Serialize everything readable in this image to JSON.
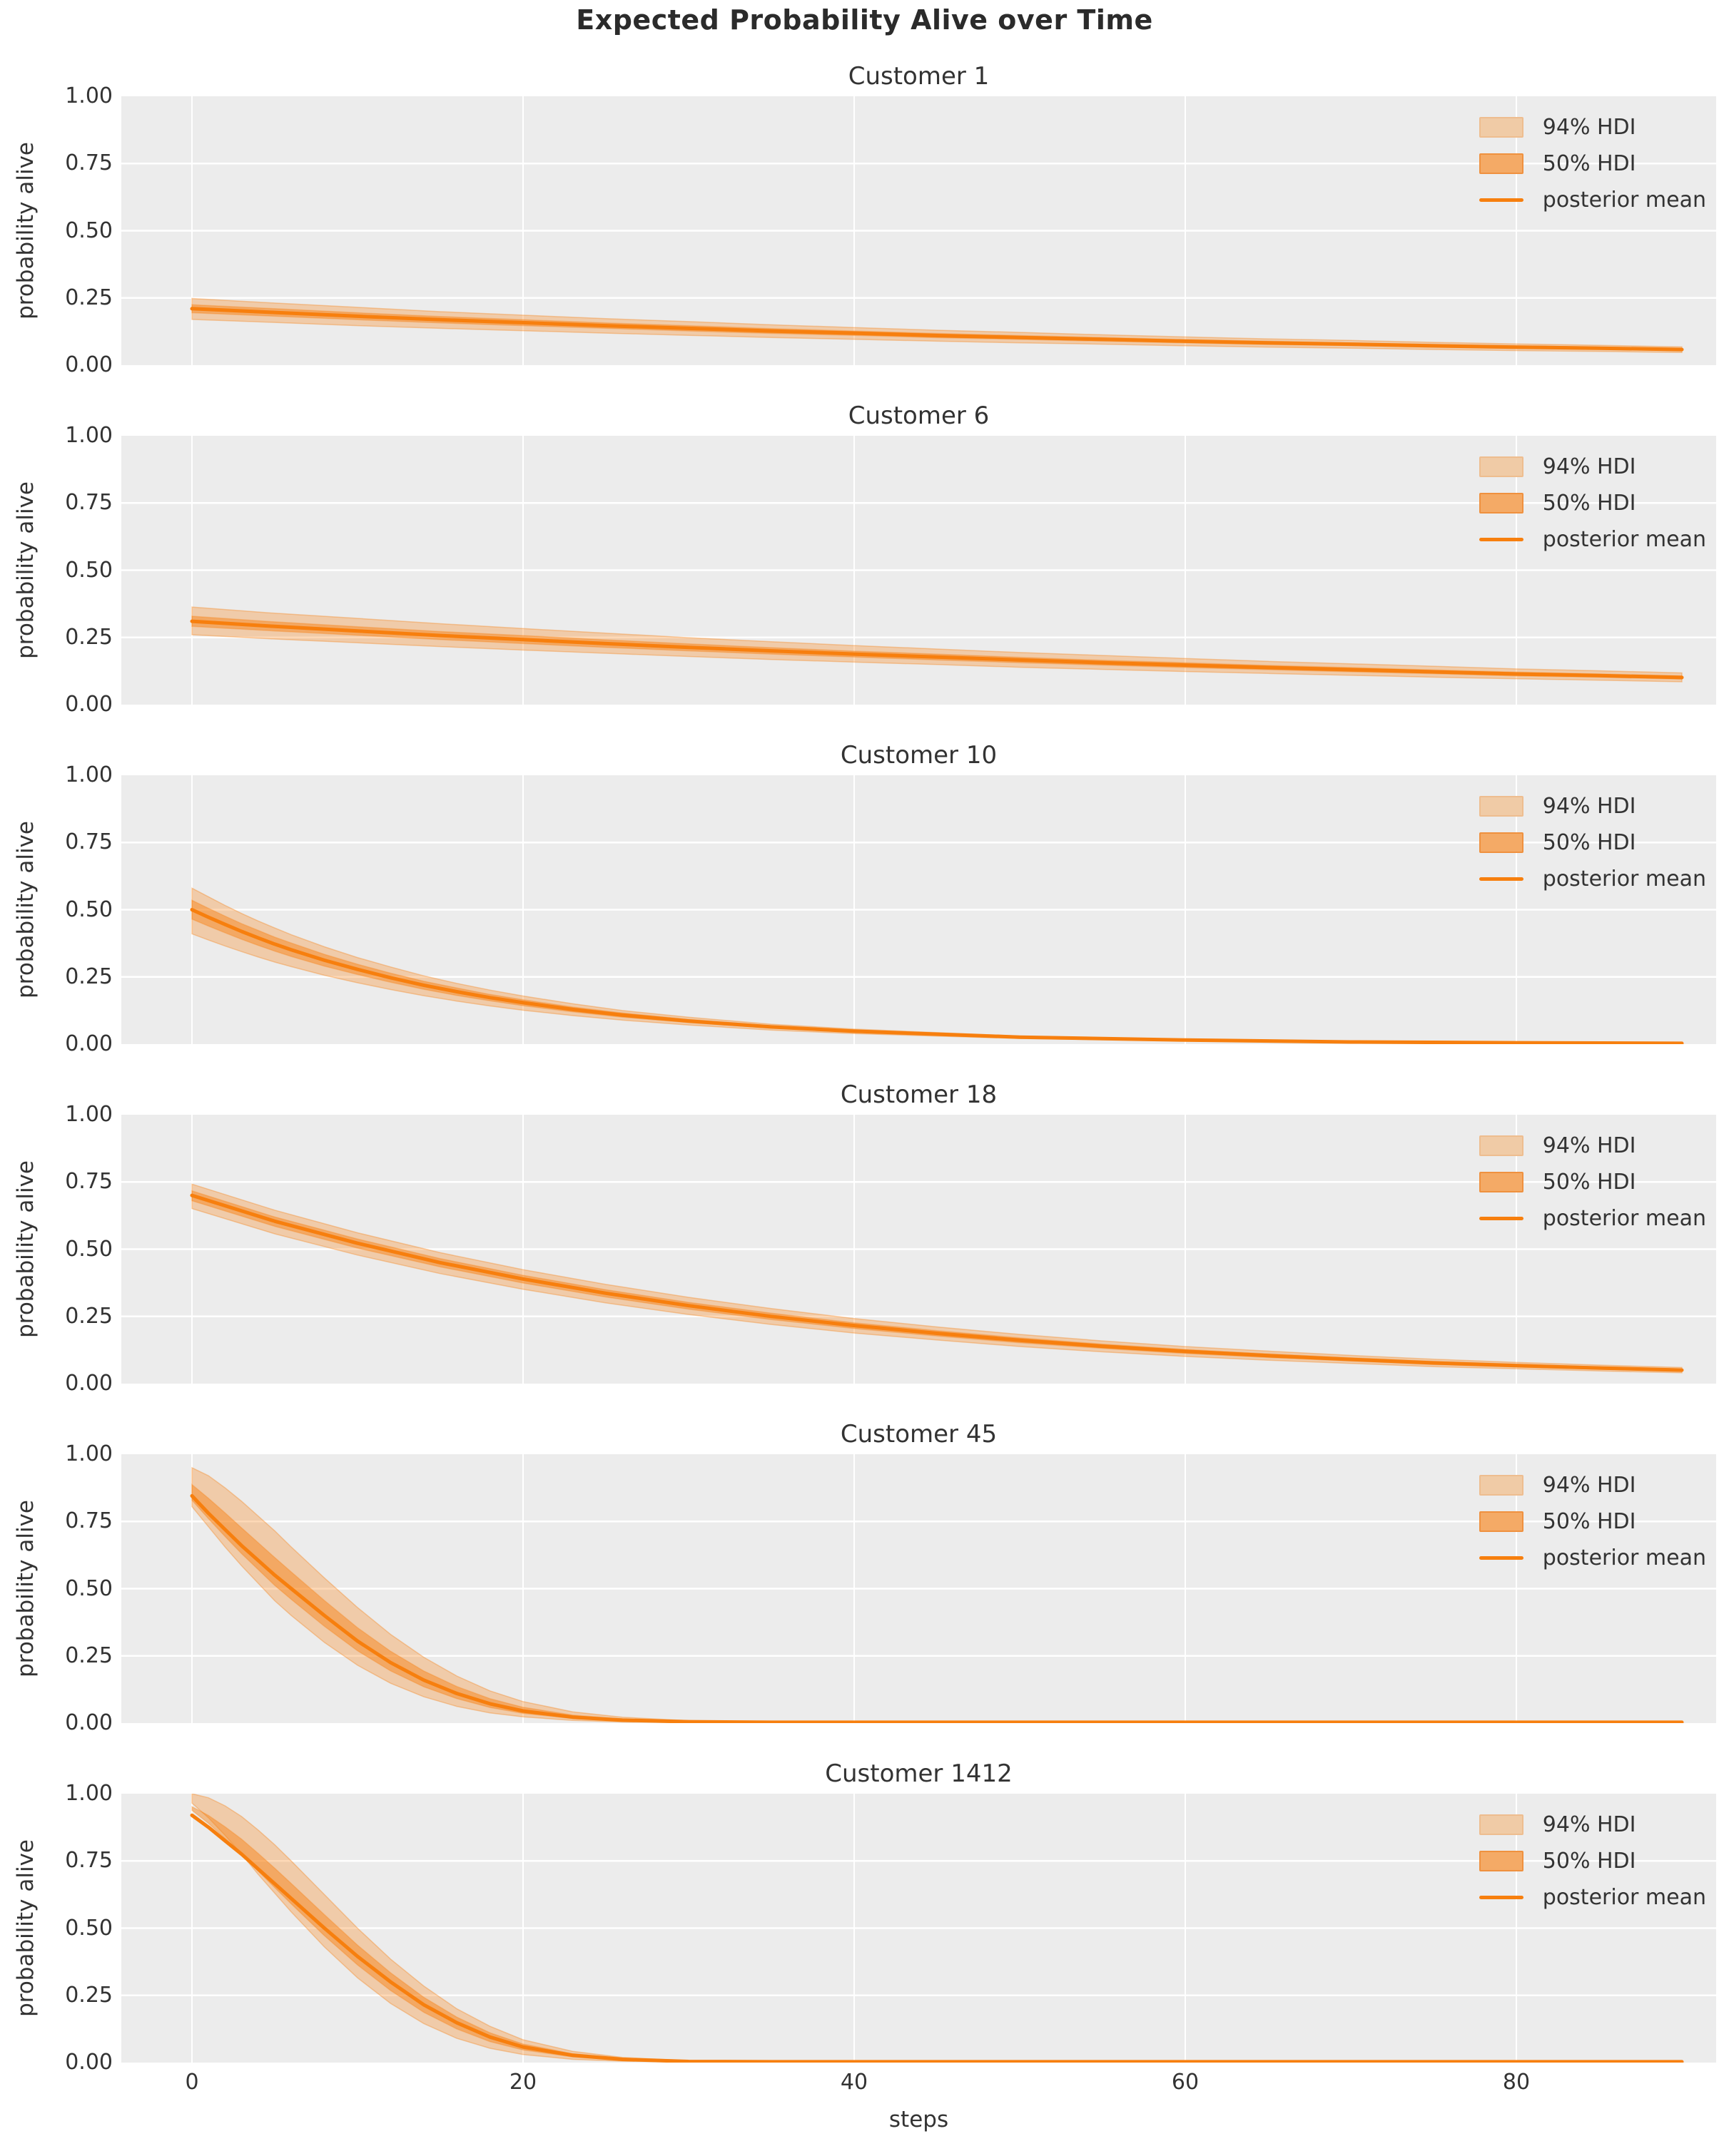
{
  "figure": {
    "title": "Expected Probability Alive over Time",
    "xlabel": "steps",
    "ylabel": "probability alive",
    "x_ticks": [
      0,
      20,
      40,
      60,
      80
    ],
    "y_ticks": [
      {
        "value": 1.0,
        "label": "1.00"
      },
      {
        "value": 0.75,
        "label": "0.75"
      },
      {
        "value": 0.5,
        "label": "0.50"
      },
      {
        "value": 0.25,
        "label": "0.25"
      },
      {
        "value": 0.0,
        "label": "0.00"
      }
    ],
    "x_axis_range": [
      -4.3,
      92.1
    ],
    "y_axis_range": [
      0,
      1
    ]
  },
  "legend": {
    "items": [
      {
        "label": "94% HDI",
        "type": "patch",
        "fill": "#f0cba6",
        "border": "#eebd8f"
      },
      {
        "label": "50% HDI",
        "type": "patch",
        "fill": "#f4aa66",
        "border": "#ef913f"
      },
      {
        "label": "posterior mean",
        "type": "line",
        "color": "#f77f0e"
      }
    ],
    "position": "upper right"
  },
  "colors": {
    "accent": "#f77f0e",
    "plot_bg": "#ececec",
    "grid": "#ffffff",
    "text": "#333333",
    "band94_opacity": 0.3,
    "band50_opacity": 0.45
  },
  "chart_data": [
    {
      "id": "customer-1",
      "title": "Customer 1",
      "type": "line",
      "x": [
        0,
        5,
        10,
        15,
        20,
        25,
        30,
        35,
        40,
        45,
        50,
        55,
        60,
        65,
        70,
        75,
        80,
        85,
        90
      ],
      "posterior_mean": [
        0.21,
        0.196,
        0.182,
        0.169,
        0.158,
        0.147,
        0.137,
        0.127,
        0.119,
        0.11,
        0.103,
        0.096,
        0.089,
        0.083,
        0.078,
        0.072,
        0.067,
        0.063,
        0.058
      ],
      "hdi94_low": [
        0.17,
        0.159,
        0.147,
        0.137,
        0.128,
        0.119,
        0.111,
        0.103,
        0.096,
        0.089,
        0.083,
        0.078,
        0.072,
        0.067,
        0.063,
        0.058,
        0.054,
        0.051,
        0.047
      ],
      "hdi94_high": [
        0.248,
        0.231,
        0.215,
        0.199,
        0.186,
        0.173,
        0.162,
        0.15,
        0.14,
        0.13,
        0.122,
        0.113,
        0.105,
        0.098,
        0.092,
        0.085,
        0.079,
        0.074,
        0.068
      ],
      "hdi50_low": [
        0.195,
        0.182,
        0.169,
        0.157,
        0.147,
        0.137,
        0.127,
        0.118,
        0.111,
        0.102,
        0.096,
        0.089,
        0.083,
        0.077,
        0.073,
        0.067,
        0.062,
        0.059,
        0.054
      ],
      "hdi50_high": [
        0.225,
        0.21,
        0.195,
        0.181,
        0.169,
        0.157,
        0.147,
        0.136,
        0.127,
        0.118,
        0.11,
        0.103,
        0.095,
        0.089,
        0.083,
        0.077,
        0.072,
        0.067,
        0.062
      ]
    },
    {
      "id": "customer-6",
      "title": "Customer 6",
      "type": "line",
      "x": [
        0,
        5,
        10,
        15,
        20,
        25,
        30,
        35,
        40,
        45,
        50,
        55,
        60,
        65,
        70,
        75,
        80,
        85,
        90
      ],
      "posterior_mean": [
        0.31,
        0.291,
        0.274,
        0.257,
        0.242,
        0.227,
        0.213,
        0.2,
        0.188,
        0.177,
        0.166,
        0.156,
        0.147,
        0.138,
        0.13,
        0.122,
        0.114,
        0.108,
        0.101
      ],
      "hdi94_low": [
        0.26,
        0.244,
        0.23,
        0.216,
        0.203,
        0.191,
        0.179,
        0.168,
        0.158,
        0.149,
        0.139,
        0.131,
        0.123,
        0.116,
        0.109,
        0.102,
        0.096,
        0.091,
        0.085
      ],
      "hdi94_high": [
        0.363,
        0.34,
        0.321,
        0.301,
        0.283,
        0.266,
        0.249,
        0.234,
        0.22,
        0.207,
        0.194,
        0.183,
        0.172,
        0.161,
        0.152,
        0.143,
        0.133,
        0.126,
        0.118
      ],
      "hdi50_low": [
        0.291,
        0.274,
        0.258,
        0.242,
        0.227,
        0.213,
        0.2,
        0.188,
        0.177,
        0.166,
        0.156,
        0.147,
        0.138,
        0.13,
        0.122,
        0.115,
        0.107,
        0.102,
        0.095
      ],
      "hdi50_high": [
        0.329,
        0.308,
        0.29,
        0.272,
        0.257,
        0.241,
        0.226,
        0.212,
        0.199,
        0.188,
        0.176,
        0.165,
        0.156,
        0.146,
        0.138,
        0.129,
        0.121,
        0.114,
        0.107
      ]
    },
    {
      "id": "customer-10",
      "title": "Customer 10",
      "type": "line",
      "x": [
        0,
        1,
        2,
        3,
        4,
        5,
        6,
        8,
        10,
        12,
        14,
        16,
        18,
        20,
        23,
        26,
        30,
        35,
        40,
        50,
        60,
        70,
        80,
        90
      ],
      "posterior_mean": [
        0.5,
        0.472,
        0.445,
        0.419,
        0.395,
        0.372,
        0.351,
        0.312,
        0.278,
        0.247,
        0.219,
        0.195,
        0.173,
        0.154,
        0.129,
        0.108,
        0.086,
        0.064,
        0.048,
        0.026,
        0.015,
        0.008,
        0.005,
        0.003
      ],
      "hdi94_low": [
        0.41,
        0.387,
        0.365,
        0.344,
        0.324,
        0.305,
        0.288,
        0.256,
        0.228,
        0.203,
        0.18,
        0.16,
        0.142,
        0.126,
        0.106,
        0.089,
        0.071,
        0.052,
        0.039,
        0.021,
        0.012,
        0.007,
        0.004,
        0.002
      ],
      "hdi94_high": [
        0.58,
        0.548,
        0.516,
        0.486,
        0.458,
        0.432,
        0.407,
        0.362,
        0.322,
        0.287,
        0.254,
        0.226,
        0.201,
        0.179,
        0.15,
        0.125,
        0.1,
        0.074,
        0.056,
        0.03,
        0.017,
        0.009,
        0.006,
        0.004
      ],
      "hdi50_low": [
        0.465,
        0.439,
        0.414,
        0.39,
        0.367,
        0.346,
        0.326,
        0.29,
        0.259,
        0.23,
        0.204,
        0.181,
        0.161,
        0.143,
        0.12,
        0.1,
        0.08,
        0.06,
        0.045,
        0.024,
        0.014,
        0.007,
        0.005,
        0.003
      ],
      "hdi50_high": [
        0.535,
        0.505,
        0.476,
        0.448,
        0.423,
        0.398,
        0.376,
        0.334,
        0.297,
        0.264,
        0.234,
        0.209,
        0.185,
        0.165,
        0.138,
        0.116,
        0.092,
        0.068,
        0.051,
        0.028,
        0.016,
        0.009,
        0.005,
        0.003
      ]
    },
    {
      "id": "customer-18",
      "title": "Customer 18",
      "type": "line",
      "x": [
        0,
        5,
        10,
        15,
        20,
        25,
        30,
        35,
        40,
        45,
        50,
        55,
        60,
        65,
        70,
        75,
        80,
        85,
        90
      ],
      "posterior_mean": [
        0.7,
        0.604,
        0.522,
        0.45,
        0.389,
        0.336,
        0.29,
        0.25,
        0.216,
        0.187,
        0.161,
        0.139,
        0.12,
        0.104,
        0.09,
        0.077,
        0.067,
        0.058,
        0.05
      ],
      "hdi94_low": [
        0.651,
        0.557,
        0.478,
        0.409,
        0.351,
        0.3,
        0.257,
        0.22,
        0.188,
        0.162,
        0.138,
        0.118,
        0.101,
        0.087,
        0.075,
        0.063,
        0.055,
        0.047,
        0.04
      ],
      "hdi94_high": [
        0.742,
        0.645,
        0.561,
        0.487,
        0.424,
        0.369,
        0.321,
        0.279,
        0.242,
        0.211,
        0.183,
        0.159,
        0.138,
        0.121,
        0.105,
        0.091,
        0.079,
        0.069,
        0.06
      ],
      "hdi50_low": [
        0.68,
        0.585,
        0.504,
        0.434,
        0.374,
        0.322,
        0.277,
        0.238,
        0.205,
        0.177,
        0.152,
        0.131,
        0.112,
        0.097,
        0.084,
        0.071,
        0.062,
        0.054,
        0.046
      ],
      "hdi50_high": [
        0.717,
        0.62,
        0.538,
        0.465,
        0.403,
        0.349,
        0.302,
        0.262,
        0.226,
        0.197,
        0.17,
        0.147,
        0.127,
        0.111,
        0.096,
        0.083,
        0.072,
        0.062,
        0.054
      ]
    },
    {
      "id": "customer-45",
      "title": "Customer 45",
      "type": "line",
      "x": [
        0,
        1,
        2,
        3,
        4,
        5,
        6,
        8,
        10,
        12,
        14,
        16,
        18,
        20,
        23,
        26,
        30,
        35,
        40,
        50,
        60,
        70,
        80,
        90
      ],
      "posterior_mean": [
        0.845,
        0.78,
        0.72,
        0.66,
        0.605,
        0.55,
        0.5,
        0.4,
        0.305,
        0.225,
        0.16,
        0.11,
        0.072,
        0.045,
        0.022,
        0.011,
        0.005,
        0.003,
        0.003,
        0.003,
        0.003,
        0.003,
        0.003,
        0.003
      ],
      "hdi94_low": [
        0.805,
        0.73,
        0.655,
        0.585,
        0.52,
        0.455,
        0.4,
        0.3,
        0.215,
        0.148,
        0.098,
        0.062,
        0.038,
        0.023,
        0.01,
        0.004,
        0.002,
        0.001,
        0.001,
        0.001,
        0.001,
        0.001,
        0.001,
        0.001
      ],
      "hdi94_high": [
        0.95,
        0.92,
        0.875,
        0.825,
        0.77,
        0.715,
        0.655,
        0.54,
        0.43,
        0.33,
        0.245,
        0.175,
        0.12,
        0.08,
        0.042,
        0.022,
        0.009,
        0.005,
        0.004,
        0.004,
        0.004,
        0.004,
        0.004,
        0.004
      ],
      "hdi50_low": [
        0.829,
        0.76,
        0.694,
        0.63,
        0.571,
        0.512,
        0.46,
        0.36,
        0.269,
        0.194,
        0.135,
        0.091,
        0.058,
        0.036,
        0.017,
        0.008,
        0.003,
        0.002,
        0.002,
        0.002,
        0.002,
        0.002,
        0.002,
        0.002
      ],
      "hdi50_high": [
        0.887,
        0.836,
        0.782,
        0.726,
        0.671,
        0.616,
        0.562,
        0.456,
        0.355,
        0.267,
        0.194,
        0.136,
        0.091,
        0.059,
        0.03,
        0.015,
        0.007,
        0.004,
        0.004,
        0.004,
        0.004,
        0.004,
        0.004,
        0.004
      ]
    },
    {
      "id": "customer-1412",
      "title": "Customer 1412",
      "type": "line",
      "x": [
        0,
        1,
        2,
        3,
        4,
        5,
        6,
        8,
        10,
        12,
        14,
        16,
        18,
        20,
        23,
        26,
        30,
        35,
        40,
        50,
        60,
        70,
        80,
        90
      ],
      "posterior_mean": [
        0.92,
        0.875,
        0.825,
        0.775,
        0.72,
        0.665,
        0.61,
        0.5,
        0.395,
        0.3,
        0.215,
        0.148,
        0.095,
        0.058,
        0.027,
        0.012,
        0.004,
        0.003,
        0.003,
        0.003,
        0.003,
        0.003,
        0.003,
        0.003
      ],
      "hdi94_low": [
        0.965,
        0.91,
        0.845,
        0.775,
        0.7,
        0.63,
        0.56,
        0.43,
        0.315,
        0.22,
        0.145,
        0.09,
        0.053,
        0.03,
        0.012,
        0.005,
        0.002,
        0.001,
        0.001,
        0.001,
        0.001,
        0.001,
        0.001,
        0.001
      ],
      "hdi94_high": [
        1.0,
        0.985,
        0.955,
        0.915,
        0.865,
        0.81,
        0.75,
        0.625,
        0.5,
        0.385,
        0.285,
        0.2,
        0.135,
        0.085,
        0.042,
        0.019,
        0.007,
        0.004,
        0.004,
        0.004,
        0.004,
        0.004,
        0.004,
        0.004
      ],
      "hdi50_low": [
        0.938,
        0.889,
        0.833,
        0.775,
        0.712,
        0.651,
        0.59,
        0.472,
        0.363,
        0.268,
        0.187,
        0.125,
        0.078,
        0.047,
        0.021,
        0.009,
        0.003,
        0.002,
        0.002,
        0.002,
        0.002,
        0.002,
        0.002,
        0.002
      ],
      "hdi50_high": [
        0.952,
        0.919,
        0.877,
        0.831,
        0.778,
        0.723,
        0.666,
        0.55,
        0.437,
        0.334,
        0.243,
        0.169,
        0.111,
        0.069,
        0.033,
        0.015,
        0.005,
        0.004,
        0.004,
        0.004,
        0.004,
        0.004,
        0.004,
        0.004
      ]
    }
  ]
}
